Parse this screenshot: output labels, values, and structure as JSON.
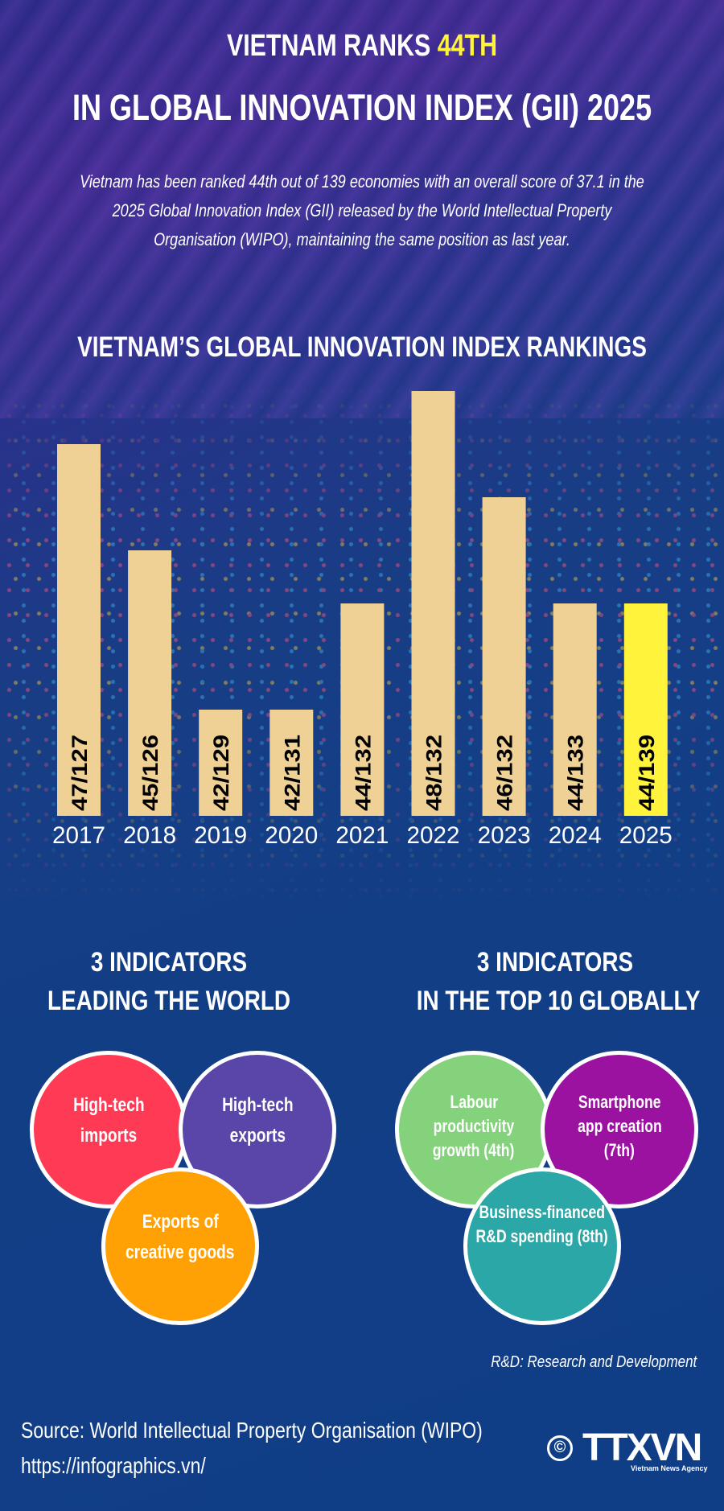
{
  "header": {
    "title_part1": "VIETNAM RANKS ",
    "title_highlight": "44TH",
    "title_line2": "IN GLOBAL INNOVATION INDEX (GII) 2025",
    "intro": [
      "Vietnam has been ranked 44th out of 139 economies with an overall score of 37.1 in the",
      "2025 Global Innovation Index (GII) released by the World Intellectual Property",
      "Organisation (WIPO), maintaining the same position as last year."
    ]
  },
  "chart_data": {
    "type": "bar",
    "title": "VIETNAM’S GLOBAL INNOVATION INDEX RANKINGS",
    "categories": [
      "2017",
      "2018",
      "2019",
      "2020",
      "2021",
      "2022",
      "2023",
      "2024",
      "2025"
    ],
    "values": [
      47,
      45,
      42,
      42,
      44,
      48,
      46,
      44,
      44
    ],
    "totals": [
      127,
      126,
      129,
      131,
      132,
      132,
      132,
      133,
      139
    ],
    "labels": [
      "47/127",
      "45/126",
      "42/129",
      "42/131",
      "44/132",
      "48/132",
      "46/132",
      "44/133",
      "44/139"
    ],
    "ylim": [
      40,
      48
    ],
    "grid": false,
    "bar_color": "#efd095",
    "highlight_color": "#fff33b",
    "highlight_index": 8
  },
  "indicators": {
    "leading": {
      "heading": [
        "3 INDICATORS",
        "LEADING THE WORLD"
      ],
      "items": [
        {
          "lines": [
            "High-tech",
            "imports"
          ],
          "color": "#ff3a55"
        },
        {
          "lines": [
            "High-tech",
            "exports"
          ],
          "color": "#5a46a8"
        },
        {
          "lines": [
            "Exports of",
            "creative goods"
          ],
          "color": "#ffa005"
        }
      ]
    },
    "top10": {
      "heading": [
        "3 INDICATORS",
        "IN THE TOP 10 GLOBALLY"
      ],
      "items": [
        {
          "lines": [
            "Labour",
            "productivity",
            "growth (4th)"
          ],
          "color": "#84d27c"
        },
        {
          "lines": [
            "Smartphone",
            "app creation",
            "(7th)"
          ],
          "color": "#9b12a0"
        },
        {
          "lines": [
            "Business-financed",
            "R&D spending (8th)"
          ],
          "color": "#2aa7a6"
        }
      ]
    }
  },
  "note": "R&D: Research and Development",
  "footer": {
    "source": "Source: World Intellectual Property Organisation (WIPO)",
    "url": "https://infographics.vn/",
    "logo_text": "TTXVN",
    "logo_sub": "Vietnam News Agency",
    "copyright": "©"
  }
}
